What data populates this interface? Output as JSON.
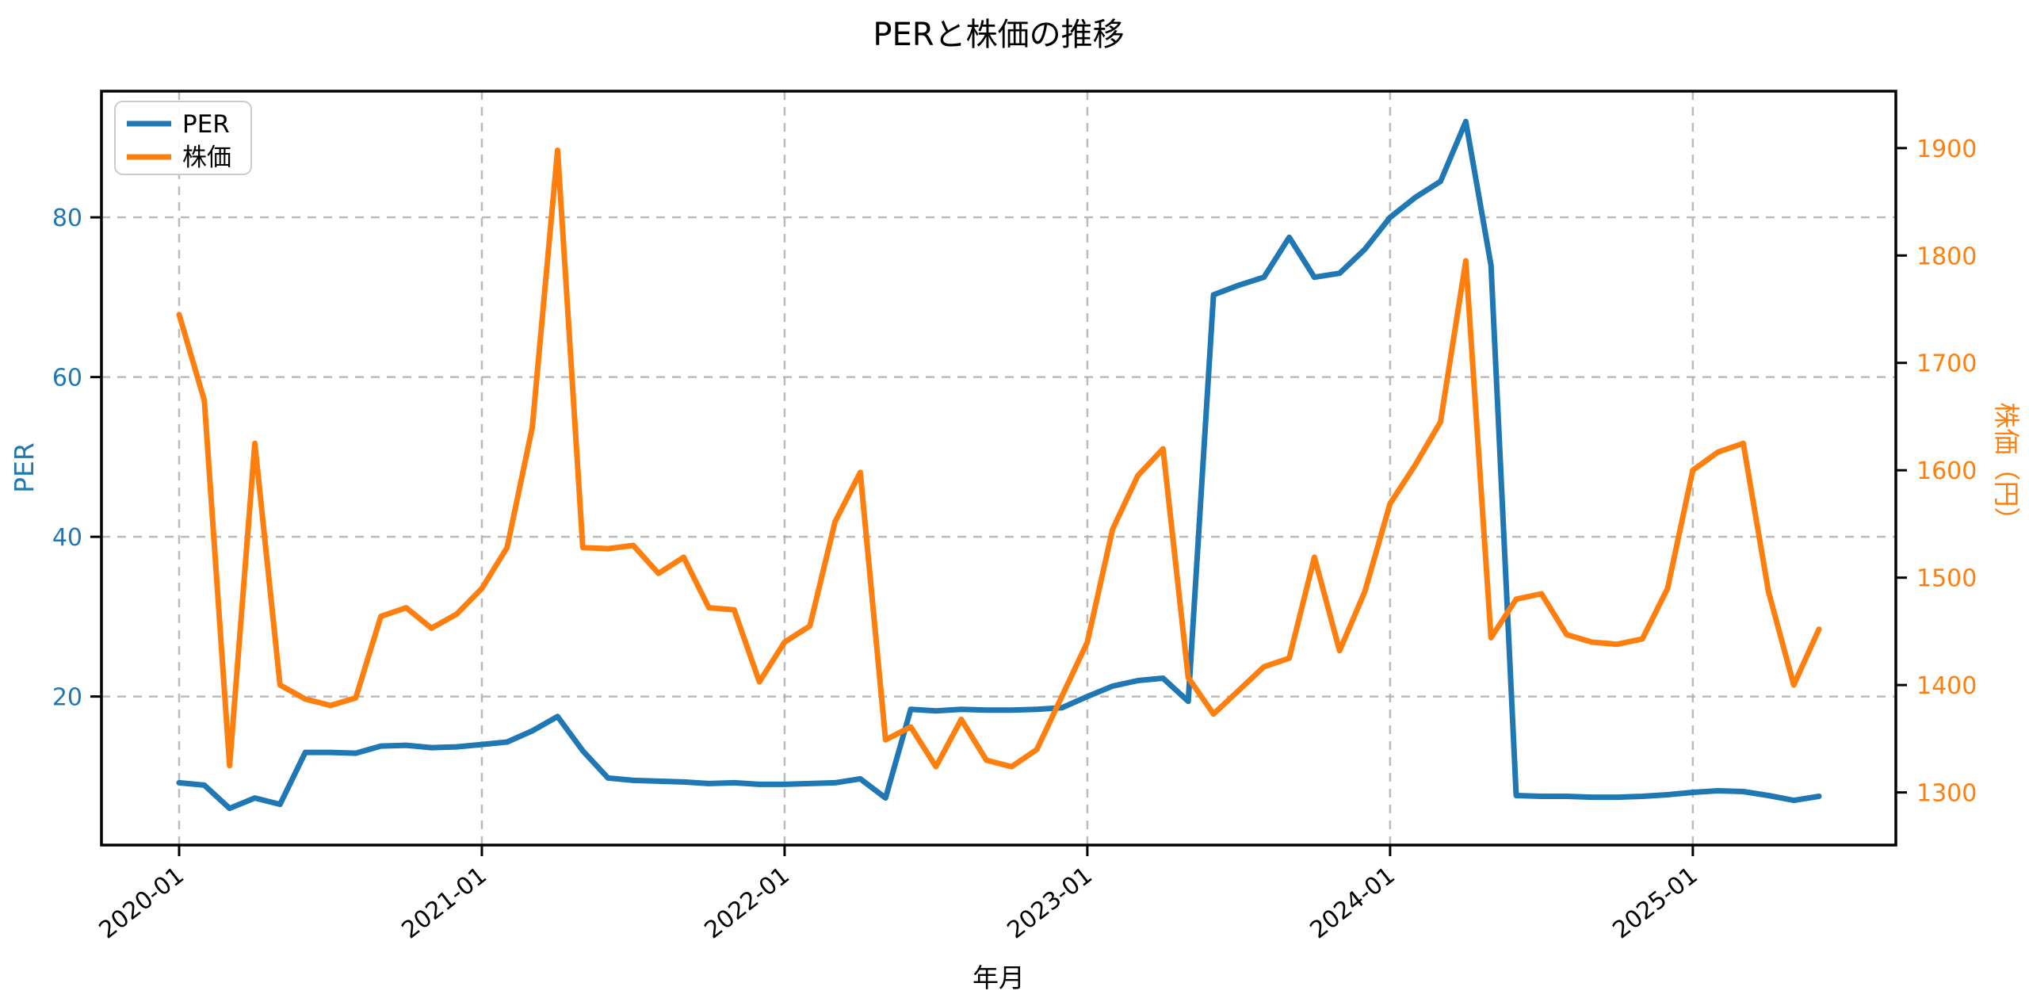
{
  "chart_data": {
    "type": "line",
    "title": "PERと株価の推移",
    "xlabel": "年月",
    "ylabel_left": "PER",
    "ylabel_right": "株価（円）",
    "x_monthly_start": "2020-01",
    "x_monthly_end": "2025-06",
    "x_tick_labels": [
      "2020-01",
      "2021-01",
      "2022-01",
      "2023-01",
      "2024-01",
      "2025-01"
    ],
    "x_tick_indices": [
      0,
      12,
      24,
      36,
      48,
      60
    ],
    "left_axis": {
      "label": "PER",
      "ticks": [
        20,
        40,
        60,
        80
      ],
      "range": [
        1.4,
        95.8
      ],
      "tick_color": "#1f77b4"
    },
    "right_axis": {
      "label": "株価（円）",
      "ticks": [
        1300,
        1400,
        1500,
        1600,
        1700,
        1800,
        1900
      ],
      "range": [
        1251,
        1953
      ],
      "tick_color": "#ff7f0e"
    },
    "grid": {
      "on": true,
      "style": "dashed",
      "color": "#b0b0b0"
    },
    "legend_position": "upper-left",
    "series": [
      {
        "name": "PER",
        "axis": "left",
        "color": "#1f77b4",
        "values": [
          9.2,
          8.9,
          6.0,
          7.3,
          6.5,
          13.0,
          13.0,
          12.9,
          13.8,
          13.9,
          13.6,
          13.7,
          14.0,
          14.3,
          15.7,
          17.5,
          13.2,
          9.8,
          9.5,
          9.4,
          9.3,
          9.1,
          9.2,
          9.0,
          9.0,
          9.1,
          9.2,
          9.7,
          7.3,
          18.4,
          18.2,
          18.4,
          18.3,
          18.3,
          18.4,
          18.6,
          20.0,
          21.3,
          22.0,
          22.3,
          19.4,
          70.3,
          71.5,
          72.5,
          77.5,
          72.5,
          73.0,
          76.0,
          80.0,
          82.5,
          84.5,
          92.0,
          74.0,
          7.6,
          7.5,
          7.5,
          7.4,
          7.4,
          7.5,
          7.7,
          8.0,
          8.2,
          8.1,
          7.6,
          7.0,
          7.5
        ]
      },
      {
        "name": "株価",
        "axis": "right",
        "color": "#ff7f0e",
        "values": [
          1745,
          1665,
          1325,
          1625,
          1400,
          1387,
          1381,
          1388,
          1464,
          1472,
          1453,
          1466,
          1490,
          1528,
          1640,
          1898,
          1528,
          1527,
          1530,
          1504,
          1519,
          1472,
          1470,
          1403,
          1440,
          1455,
          1552,
          1598,
          1349,
          1361,
          1324,
          1368,
          1330,
          1324,
          1340,
          1390,
          1440,
          1545,
          1595,
          1620,
          1407,
          1373,
          1395,
          1417,
          1425,
          1519,
          1432,
          1487,
          1569,
          1605,
          1645,
          1795,
          1444,
          1480,
          1485,
          1447,
          1440,
          1438,
          1443,
          1490,
          1600,
          1617,
          1625,
          1487,
          1400,
          1452
        ]
      }
    ]
  }
}
